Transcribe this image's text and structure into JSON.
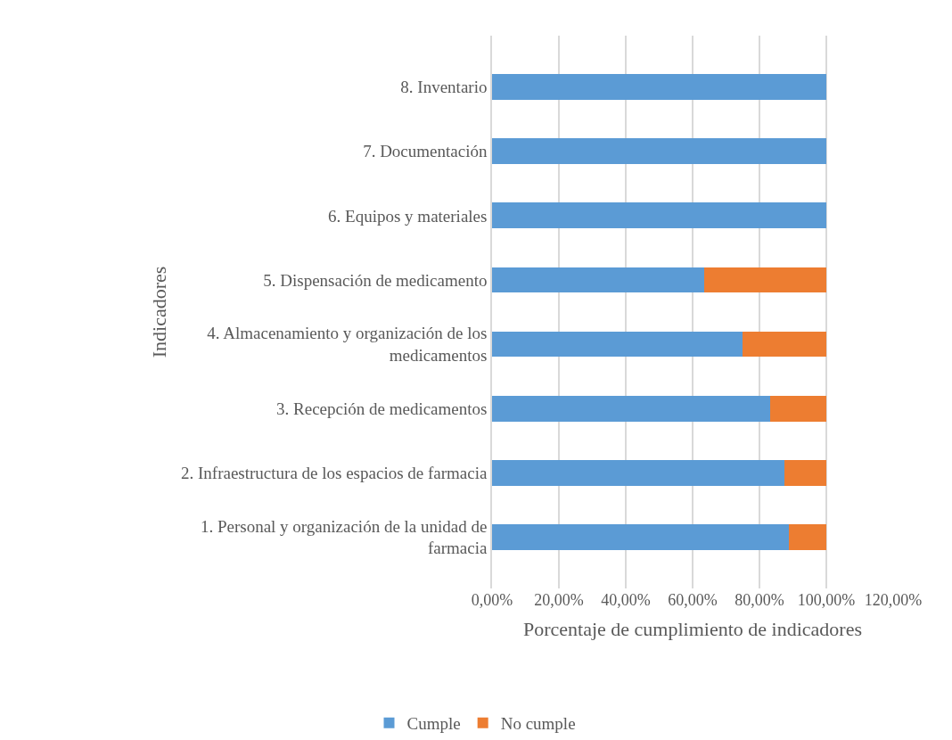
{
  "chart_data": {
    "type": "bar",
    "orientation": "horizontal",
    "stacked": true,
    "categories": [
      "8. Inventario",
      "7. Documentación",
      "6. Equipos y materiales",
      "5. Dispensación de medicamento",
      "4. Almacenamiento y organización de los medicamentos",
      "3. Recepción de medicamentos",
      "2. Infraestructura de los espacios de farmacia",
      "1. Personal y organización de la unidad de farmacia"
    ],
    "series": [
      {
        "name": "Cumple",
        "color": "#5b9bd5",
        "values": [
          100,
          100,
          100,
          63.4,
          75.0,
          83.2,
          87.4,
          88.9
        ]
      },
      {
        "name": "No cumple",
        "color": "#ed7d31",
        "values": [
          0,
          0,
          0,
          36.6,
          25.0,
          16.8,
          12.6,
          11.1
        ]
      }
    ],
    "xlabel": "Porcentaje de cumplimiento de indicadores",
    "ylabel": "Indicadores",
    "xlim": [
      0,
      120
    ],
    "xticks": [
      {
        "value": 0,
        "label": "0,00%"
      },
      {
        "value": 20,
        "label": "20,00%"
      },
      {
        "value": 40,
        "label": "40,00%"
      },
      {
        "value": 60,
        "label": "60,00%"
      },
      {
        "value": 80,
        "label": "80,00%"
      },
      {
        "value": 100,
        "label": "100,00%"
      },
      {
        "value": 120,
        "label": "120,00%"
      }
    ],
    "grid": "x",
    "legend": "bottom"
  }
}
